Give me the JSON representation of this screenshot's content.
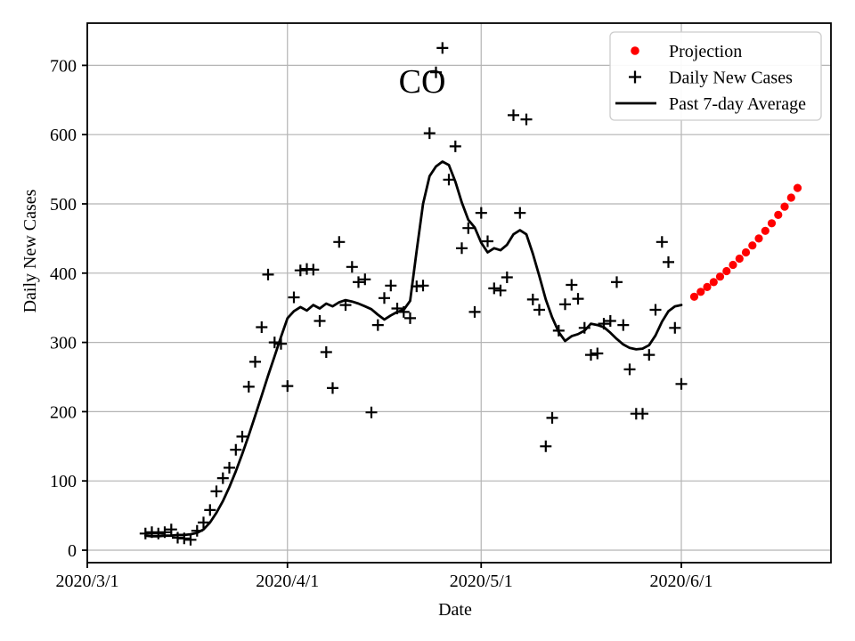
{
  "chart_data": {
    "type": "line",
    "title": "CO",
    "xlabel": "Date",
    "ylabel": "Daily New Cases",
    "x_tick_labels": [
      "2020/3/1",
      "2020/4/1",
      "2020/5/1",
      "2020/6/1"
    ],
    "x_tick_days": [
      0,
      31,
      61,
      92
    ],
    "y_ticks": [
      0,
      100,
      200,
      300,
      400,
      500,
      600,
      700
    ],
    "ylim": [
      -18,
      761
    ],
    "xlim_days": [
      0,
      115
    ],
    "grid": true,
    "grid_color": "#b4b4b4",
    "background_color": "#ffffff",
    "legend": {
      "position": "upper right",
      "entries": [
        {
          "label": "Projection",
          "marker": "red-dot",
          "color": "#ff0000"
        },
        {
          "label": "Daily New Cases",
          "marker": "plus",
          "color": "#000000"
        },
        {
          "label": "Past 7-day Average",
          "marker": "line",
          "color": "#000000"
        }
      ]
    },
    "series": [
      {
        "name": "Daily New Cases",
        "type": "scatter-plus",
        "color": "#000000",
        "dates": [
          "2020/3/10",
          "2020/3/11",
          "2020/3/12",
          "2020/3/13",
          "2020/3/14",
          "2020/3/15",
          "2020/3/16",
          "2020/3/17",
          "2020/3/18",
          "2020/3/19",
          "2020/3/20",
          "2020/3/21",
          "2020/3/22",
          "2020/3/23",
          "2020/3/24",
          "2020/3/25",
          "2020/3/26",
          "2020/3/27",
          "2020/3/28",
          "2020/3/29",
          "2020/3/30",
          "2020/3/31",
          "2020/4/1",
          "2020/4/2",
          "2020/4/3",
          "2020/4/4",
          "2020/4/5",
          "2020/4/6",
          "2020/4/7",
          "2020/4/8",
          "2020/4/9",
          "2020/4/10",
          "2020/4/11",
          "2020/4/12",
          "2020/4/13",
          "2020/4/14",
          "2020/4/15",
          "2020/4/16",
          "2020/4/17",
          "2020/4/18",
          "2020/4/19",
          "2020/4/20",
          "2020/4/21",
          "2020/4/22",
          "2020/4/23",
          "2020/4/24",
          "2020/4/25",
          "2020/4/26",
          "2020/4/27",
          "2020/4/28",
          "2020/4/29",
          "2020/4/30",
          "2020/5/1",
          "2020/5/2",
          "2020/5/3",
          "2020/5/4",
          "2020/5/5",
          "2020/5/6",
          "2020/5/7",
          "2020/5/8",
          "2020/5/9",
          "2020/5/10",
          "2020/5/11",
          "2020/5/12",
          "2020/5/13",
          "2020/5/14",
          "2020/5/15",
          "2020/5/16",
          "2020/5/17",
          "2020/5/18",
          "2020/5/19",
          "2020/5/20",
          "2020/5/21",
          "2020/5/22",
          "2020/5/23",
          "2020/5/24",
          "2020/5/25",
          "2020/5/26",
          "2020/5/27",
          "2020/5/28",
          "2020/5/29",
          "2020/5/30",
          "2020/5/31",
          "2020/6/1",
          "2020/6/2"
        ],
        "values": [
          24,
          26,
          24,
          26,
          30,
          18,
          17,
          15,
          28,
          40,
          58,
          85,
          104,
          119,
          145,
          164,
          236,
          272,
          322,
          398,
          300,
          298,
          237,
          365,
          404,
          406,
          405,
          331,
          286,
          234,
          445,
          354,
          409,
          387,
          391,
          199,
          325,
          364,
          382,
          349,
          344,
          335,
          381,
          382,
          602,
          690,
          725,
          535,
          583,
          436,
          465,
          344,
          487,
          446,
          378,
          375,
          394,
          628,
          487,
          622,
          362,
          347,
          150,
          191,
          317,
          355,
          383,
          363,
          321,
          282,
          284,
          327,
          331,
          387,
          325,
          261,
          197,
          197,
          282,
          347,
          445,
          416,
          321,
          240
        ]
      },
      {
        "name": "Past 7-day Average",
        "type": "line",
        "color": "#000000",
        "dates": [
          "2020/3/10",
          "2020/3/11",
          "2020/3/12",
          "2020/3/13",
          "2020/3/14",
          "2020/3/15",
          "2020/3/16",
          "2020/3/17",
          "2020/3/18",
          "2020/3/19",
          "2020/3/20",
          "2020/3/21",
          "2020/3/22",
          "2020/3/23",
          "2020/3/24",
          "2020/3/25",
          "2020/3/26",
          "2020/3/27",
          "2020/3/28",
          "2020/3/29",
          "2020/3/30",
          "2020/3/31",
          "2020/4/1",
          "2020/4/2",
          "2020/4/3",
          "2020/4/4",
          "2020/4/5",
          "2020/4/6",
          "2020/4/7",
          "2020/4/8",
          "2020/4/9",
          "2020/4/10",
          "2020/4/11",
          "2020/4/12",
          "2020/4/13",
          "2020/4/14",
          "2020/4/15",
          "2020/4/16",
          "2020/4/17",
          "2020/4/18",
          "2020/4/19",
          "2020/4/20",
          "2020/4/21",
          "2020/4/22",
          "2020/4/23",
          "2020/4/24",
          "2020/4/25",
          "2020/4/26",
          "2020/4/27",
          "2020/4/28",
          "2020/4/29",
          "2020/4/30",
          "2020/5/1",
          "2020/5/2",
          "2020/5/3",
          "2020/5/4",
          "2020/5/5",
          "2020/5/6",
          "2020/5/7",
          "2020/5/8",
          "2020/5/9",
          "2020/5/10",
          "2020/5/11",
          "2020/5/12",
          "2020/5/13",
          "2020/5/14",
          "2020/5/15",
          "2020/5/16",
          "2020/5/17",
          "2020/5/18",
          "2020/5/19",
          "2020/5/20",
          "2020/5/21",
          "2020/5/22",
          "2020/5/23",
          "2020/5/24",
          "2020/5/25",
          "2020/5/26",
          "2020/5/27",
          "2020/5/28",
          "2020/5/29",
          "2020/5/30",
          "2020/5/31",
          "2020/6/1"
        ],
        "values": [
          21,
          20,
          20,
          21,
          21,
          22,
          22,
          23,
          25,
          30,
          40,
          54,
          71,
          91,
          114,
          139,
          166,
          194,
          223,
          252,
          280,
          308,
          335,
          345,
          351,
          346,
          354,
          349,
          356,
          352,
          358,
          361,
          359,
          356,
          352,
          348,
          340,
          333,
          339,
          344,
          347,
          360,
          432,
          500,
          540,
          554,
          561,
          556,
          532,
          502,
          477,
          466,
          444,
          430,
          436,
          433,
          441,
          456,
          462,
          456,
          428,
          396,
          362,
          336,
          315,
          302,
          309,
          312,
          317,
          327,
          325,
          322,
          314,
          305,
          297,
          292,
          290,
          291,
          296,
          310,
          330,
          345,
          352,
          354
        ]
      },
      {
        "name": "Projection",
        "type": "scatter-dot",
        "color": "#ff0000",
        "dates": [
          "2020/6/3",
          "2020/6/4",
          "2020/6/5",
          "2020/6/6",
          "2020/6/7",
          "2020/6/8",
          "2020/6/9",
          "2020/6/10",
          "2020/6/11",
          "2020/6/12",
          "2020/6/13",
          "2020/6/14",
          "2020/6/15",
          "2020/6/16",
          "2020/6/17",
          "2020/6/18",
          "2020/6/19"
        ],
        "values": [
          366,
          373,
          380,
          387,
          395,
          403,
          412,
          421,
          430,
          440,
          450,
          461,
          472,
          484,
          496,
          509,
          523
        ]
      }
    ]
  }
}
